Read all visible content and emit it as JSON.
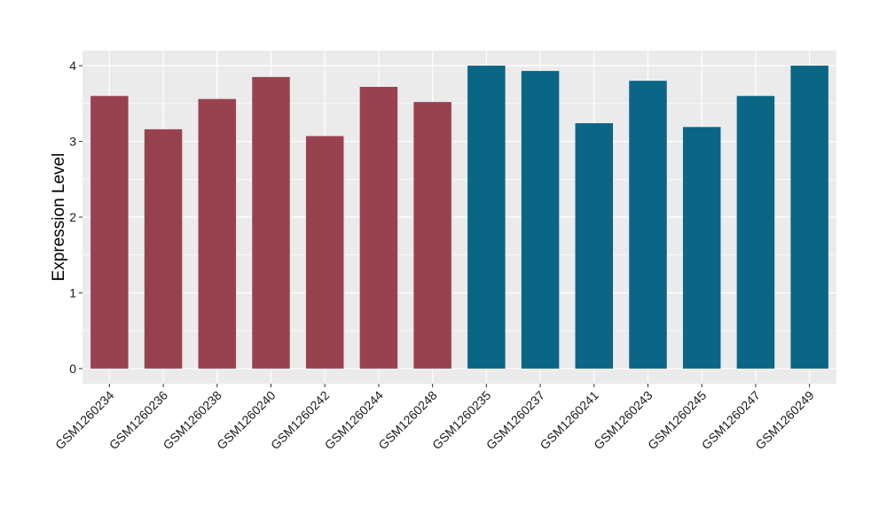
{
  "chart_data": {
    "type": "bar",
    "title": "",
    "xlabel": "",
    "ylabel": "Expression Level",
    "categories": [
      "GSM1260234",
      "GSM1260236",
      "GSM1260238",
      "GSM1260240",
      "GSM1260242",
      "GSM1260244",
      "GSM1260248",
      "GSM1260235",
      "GSM1260237",
      "GSM1260241",
      "GSM1260243",
      "GSM1260245",
      "GSM1260247",
      "GSM1260249"
    ],
    "values": [
      3.6,
      3.16,
      3.56,
      3.85,
      3.07,
      3.72,
      3.52,
      4.0,
      3.93,
      3.24,
      3.8,
      3.19,
      3.6,
      4.0
    ],
    "groups": [
      1,
      1,
      1,
      1,
      1,
      1,
      1,
      2,
      2,
      2,
      2,
      2,
      2,
      2
    ],
    "group_colors": {
      "1": "#99424f",
      "2": "#0b6585"
    },
    "ylim": [
      -0.2,
      4.2
    ],
    "yticks": [
      0,
      1,
      2,
      3,
      4
    ],
    "grid": true,
    "panel_background": "#ebebeb",
    "grid_color": "#ffffff",
    "legend": "none"
  }
}
